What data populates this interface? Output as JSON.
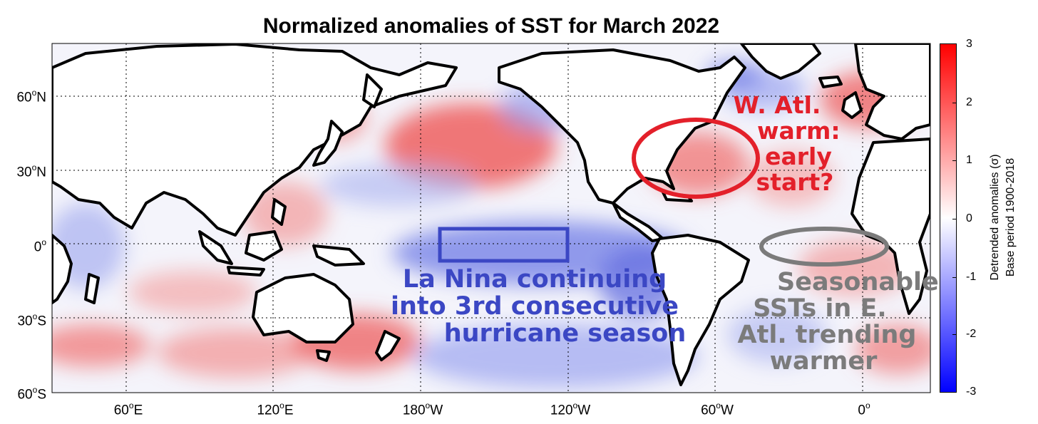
{
  "title": "Normalized anomalies of SST for March 2022",
  "lat_labels": [
    {
      "deg": "60",
      "hem": "N"
    },
    {
      "deg": "30",
      "hem": "N"
    },
    {
      "deg": "0",
      "hem": ""
    },
    {
      "deg": "30",
      "hem": "S"
    },
    {
      "deg": "60",
      "hem": "S"
    }
  ],
  "lon_labels": [
    {
      "deg": "60",
      "hem": "E"
    },
    {
      "deg": "120",
      "hem": "E"
    },
    {
      "deg": "180",
      "hem": "W"
    },
    {
      "deg": "120",
      "hem": "W"
    },
    {
      "deg": "60",
      "hem": "W"
    },
    {
      "deg": "0",
      "hem": ""
    }
  ],
  "degree_symbol": "o",
  "colorbar": {
    "ticks": [
      "3",
      "2",
      "1",
      "0",
      "-1",
      "-2",
      "-3"
    ],
    "label_line1": "Detrended anomalies (σ)",
    "label_line2": "Base period 1900-2018",
    "colors": {
      "max": "#ff0000",
      "mid": "#ffffff",
      "min": "#0000ff"
    }
  },
  "annotations": {
    "warm": {
      "lines": [
        "W. Atl.",
        "warm:",
        "early",
        "start?"
      ],
      "color": "#e3202a"
    },
    "lanina": {
      "lines": [
        "La Nina continuing",
        "into 3rd consecutive",
        "hurricane season"
      ],
      "color": "#3b47c4"
    },
    "seasonable": {
      "lines": [
        "Seasonable",
        "SSTs in E.",
        "Atl. trending",
        "warmer"
      ],
      "color": "#7b7b7b"
    }
  },
  "colors": {
    "warm_anomaly": "#f26a6a",
    "cool_anomaly": "#7a86e8",
    "land": "#ffffff",
    "coast": "#000000"
  }
}
